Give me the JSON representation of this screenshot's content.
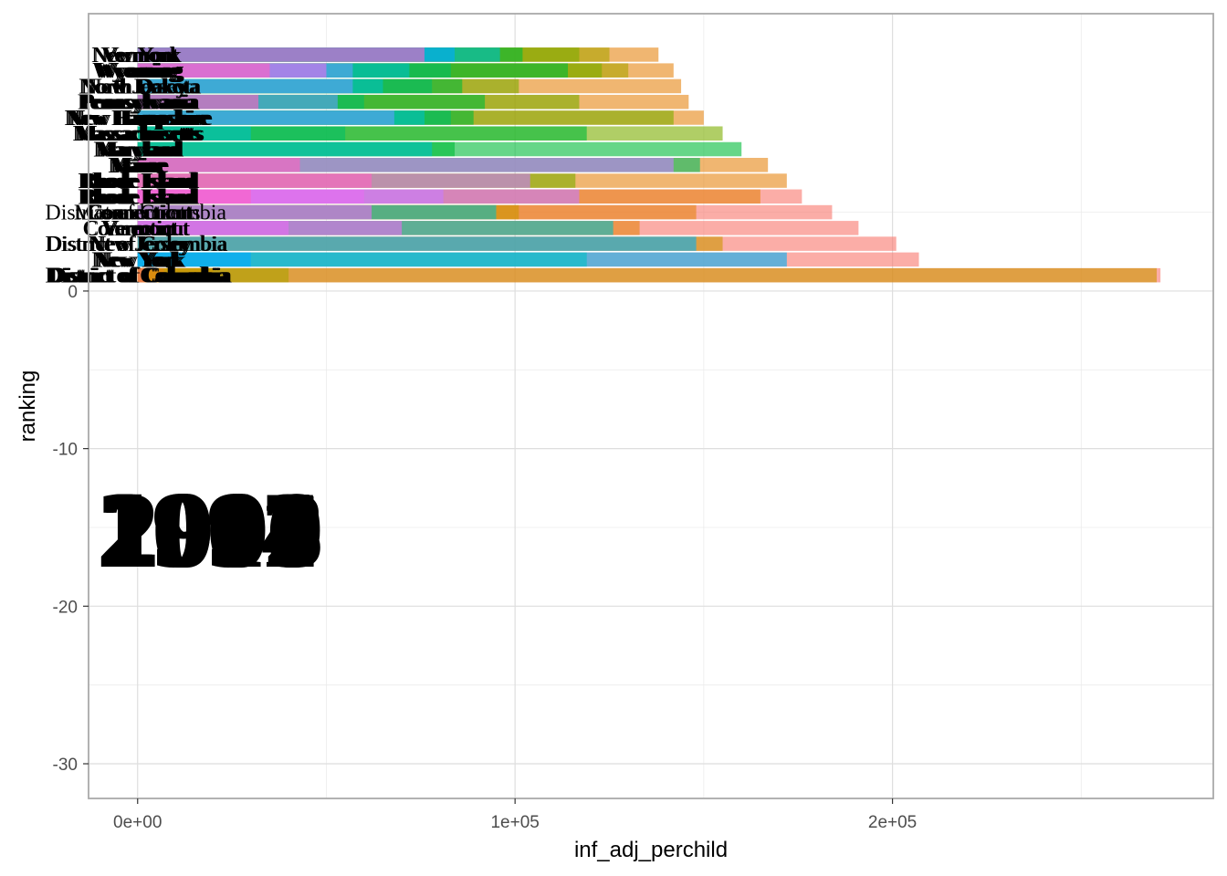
{
  "chart_data": {
    "type": "bar",
    "orientation": "horizontal",
    "xlabel": "inf_adj_perchild",
    "ylabel": "ranking",
    "xlim": [
      -13000,
      285000
    ],
    "ylim": [
      -32.2,
      17.6
    ],
    "x_ticks": [
      {
        "value": 0,
        "label": "0e+00"
      },
      {
        "value": 100000,
        "label": "1e+05"
      },
      {
        "value": 200000,
        "label": "2e+05"
      }
    ],
    "y_ticks": [
      {
        "value": 0,
        "label": "0"
      },
      {
        "value": -10,
        "label": "-10"
      },
      {
        "value": -20,
        "label": "-20"
      },
      {
        "value": -30,
        "label": "-30"
      }
    ],
    "grid": true,
    "legend": "none",
    "bar_opacity": 0.6,
    "year_labels": [
      "1997",
      "2002",
      "2005",
      "2008",
      "2011",
      "2014",
      "2016",
      "1999",
      "2004"
    ],
    "ranks": [
      {
        "rank": 1,
        "labels": [
          "District of Columbia",
          "District of Columbia",
          "District of Columbia",
          "District of Columbia",
          "District of Columbia"
        ],
        "segments": [
          {
            "x": 2000,
            "color": "#F8766D"
          },
          {
            "x": 7000,
            "color": "#E68613"
          },
          {
            "x": 20000,
            "color": "#CD9600"
          },
          {
            "x": 40000,
            "color": "#ABA300"
          },
          {
            "x": 270000,
            "color": "#CD9600"
          },
          {
            "x": 271000,
            "color": "#F8766D"
          }
        ]
      },
      {
        "rank": 2,
        "labels": [
          "New York",
          "New York",
          "New York",
          "New York",
          "New York"
        ],
        "segments": [
          {
            "x": 30000,
            "color": "#00A9FF"
          },
          {
            "x": 119000,
            "color": "#00BFC4"
          },
          {
            "x": 172000,
            "color": "#00B0F6"
          },
          {
            "x": 207000,
            "color": "#F8766D"
          }
        ]
      },
      {
        "rank": 3,
        "labels": [
          "District of Columbia",
          "District of Columbia",
          "New Jersey",
          "New Jersey",
          "New Jersey"
        ],
        "segments": [
          {
            "x": 148000,
            "color": "#00B0F6"
          },
          {
            "x": 155000,
            "color": "#CD9600"
          },
          {
            "x": 201000,
            "color": "#F8766D"
          }
        ]
      },
      {
        "rank": 4,
        "labels": [
          "Connecticut",
          "Connecticut",
          "Vermont",
          "Vermont",
          "Vermont"
        ],
        "segments": [
          {
            "x": 40000,
            "color": "#E76BF3"
          },
          {
            "x": 70000,
            "color": "#E76BF3"
          },
          {
            "x": 126000,
            "color": "#00BFC4"
          },
          {
            "x": 133000,
            "color": "#E68613"
          },
          {
            "x": 191000,
            "color": "#F8766D"
          }
        ]
      },
      {
        "rank": 5,
        "labels": [
          "District of Columbia",
          "Massachusetts",
          "Connecticut",
          "Connecticut",
          "Connecticut"
        ],
        "segments": [
          {
            "x": 62000,
            "color": "#E76BF3"
          },
          {
            "x": 95000,
            "color": "#00BFC4"
          },
          {
            "x": 101000,
            "color": "#CD9600"
          },
          {
            "x": 148000,
            "color": "#E68613"
          },
          {
            "x": 184000,
            "color": "#F8766D"
          }
        ]
      },
      {
        "rank": 6,
        "labels": [
          "Rhode Island",
          "Rhode Island",
          "Rhode Island",
          "Rhode Island",
          "Rhode Island"
        ],
        "segments": [
          {
            "x": 30000,
            "color": "#FF61C3"
          },
          {
            "x": 60000,
            "color": "#E76BF3"
          },
          {
            "x": 81000,
            "color": "#C77CFF"
          },
          {
            "x": 117000,
            "color": "#C77CFF"
          },
          {
            "x": 165000,
            "color": "#E68613"
          },
          {
            "x": 176000,
            "color": "#F8766D"
          }
        ]
      },
      {
        "rank": 7,
        "labels": [
          "Rhode Island",
          "Rhode Island",
          "Rhode Island",
          "Rhode Island",
          "Rhode Island"
        ],
        "segments": [
          {
            "x": 62000,
            "color": "#FF61C3"
          },
          {
            "x": 104000,
            "color": "#C77CFF"
          },
          {
            "x": 116000,
            "color": "#7CAE00"
          },
          {
            "x": 172000,
            "color": "#E68613"
          }
        ]
      },
      {
        "rank": 8,
        "labels": [
          "Maine",
          "Maine",
          "Maine",
          "Maine",
          "Maine"
        ],
        "segments": [
          {
            "x": 43000,
            "color": "#FF61C3"
          },
          {
            "x": 142000,
            "color": "#C77CFF"
          },
          {
            "x": 149000,
            "color": "#00BE67"
          },
          {
            "x": 167000,
            "color": "#E68613"
          }
        ]
      },
      {
        "rank": 9,
        "labels": [
          "Maryland",
          "Maryland",
          "Maryland",
          "Maryland",
          "Maryland"
        ],
        "segments": [
          {
            "x": 78000,
            "color": "#00BFC4"
          },
          {
            "x": 84000,
            "color": "#00BA38"
          },
          {
            "x": 160000,
            "color": "#00BA38"
          }
        ]
      },
      {
        "rank": 10,
        "labels": [
          "Massachusetts",
          "Massachusetts",
          "Massachusetts",
          "Massachusetts",
          "Massachusetts"
        ],
        "segments": [
          {
            "x": 30000,
            "color": "#00BFC4"
          },
          {
            "x": 55000,
            "color": "#00BE67"
          },
          {
            "x": 119000,
            "color": "#00BA38"
          },
          {
            "x": 155000,
            "color": "#7CAE00"
          }
        ]
      },
      {
        "rank": 11,
        "labels": [
          "New Hampshire",
          "New Hampshire",
          "New Hampshire",
          "New Hampshire",
          "New Hampshire"
        ],
        "segments": [
          {
            "x": 68000,
            "color": "#619CFF"
          },
          {
            "x": 76000,
            "color": "#00BFC4"
          },
          {
            "x": 83000,
            "color": "#00BE67"
          },
          {
            "x": 89000,
            "color": "#00BA38"
          },
          {
            "x": 142000,
            "color": "#7CAE00"
          },
          {
            "x": 150000,
            "color": "#E68613"
          }
        ]
      },
      {
        "rank": 12,
        "labels": [
          "Pennsylvania",
          "Pennsylvania",
          "Pennsylvania",
          "Pennsylvania",
          "Pennsylvania"
        ],
        "segments": [
          {
            "x": 32000,
            "color": "#FF61C3"
          },
          {
            "x": 53000,
            "color": "#619CFF"
          },
          {
            "x": 60000,
            "color": "#00BE67"
          },
          {
            "x": 92000,
            "color": "#00BA38"
          },
          {
            "x": 117000,
            "color": "#7CAE00"
          },
          {
            "x": 146000,
            "color": "#E68613"
          }
        ]
      },
      {
        "rank": 13,
        "labels": [
          "New Jersey",
          "New Jersey",
          "North Dakota",
          "North Dakota",
          "North Dakota"
        ],
        "segments": [
          {
            "x": 57000,
            "color": "#619CFF"
          },
          {
            "x": 65000,
            "color": "#00BFC4"
          },
          {
            "x": 78000,
            "color": "#00BE67"
          },
          {
            "x": 86000,
            "color": "#00BA38"
          },
          {
            "x": 101000,
            "color": "#7CAE00"
          },
          {
            "x": 144000,
            "color": "#E68613"
          }
        ]
      },
      {
        "rank": 14,
        "labels": [
          "Wyoming",
          "Wyoming",
          "Wyoming",
          "Wyoming",
          "Wyoming"
        ],
        "segments": [
          {
            "x": 35000,
            "color": "#FF61C3"
          },
          {
            "x": 50000,
            "color": "#E76BF3"
          },
          {
            "x": 57000,
            "color": "#619CFF"
          },
          {
            "x": 72000,
            "color": "#00BFC4"
          },
          {
            "x": 83000,
            "color": "#00BE67"
          },
          {
            "x": 114000,
            "color": "#00BA38"
          },
          {
            "x": 123000,
            "color": "#7CAE00"
          },
          {
            "x": 130000,
            "color": "#ABA300"
          },
          {
            "x": 142000,
            "color": "#E68613"
          }
        ]
      },
      {
        "rank": 15,
        "labels": [
          "New York",
          "New York",
          "Vermont",
          "Vermont",
          "Vermont"
        ],
        "segments": [
          {
            "x": 76000,
            "color": "#FF61C3"
          },
          {
            "x": 84000,
            "color": "#00A9FF"
          },
          {
            "x": 96000,
            "color": "#00BFC4"
          },
          {
            "x": 102000,
            "color": "#00BA38"
          },
          {
            "x": 117000,
            "color": "#7CAE00"
          },
          {
            "x": 125000,
            "color": "#ABA300"
          },
          {
            "x": 138000,
            "color": "#E68613"
          }
        ]
      }
    ]
  }
}
